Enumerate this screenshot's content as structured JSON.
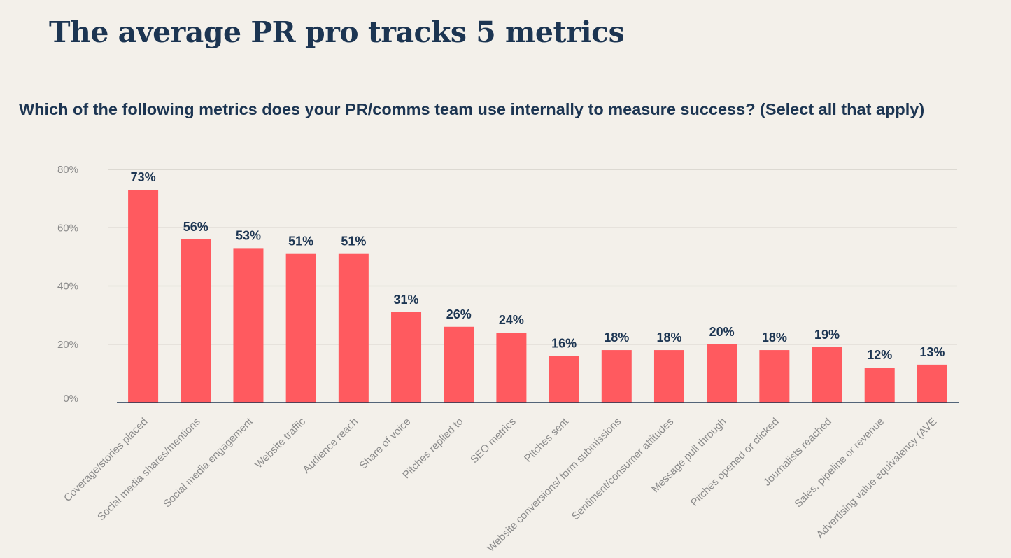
{
  "header": {
    "title": "The average PR pro tracks 5 metrics",
    "question": "Which of the following metrics does your PR/comms team use internally to measure success? (Select all that apply)"
  },
  "colors": {
    "bar": "#ff5a5f",
    "text": "#1c3552",
    "grid": "#cfcbc4",
    "axis": "#1c3552",
    "tick": "#8a8a8a",
    "background": "#f3f0ea"
  },
  "chart_data": {
    "type": "bar",
    "categories": [
      "Coverage/stories placed",
      "Social media shares/mentions",
      "Social media engagement",
      "Website traffic",
      "Audience reach",
      "Share of voice",
      "Pitches replied to",
      "SEO metrics",
      "Pitches sent",
      "Website conversions/ form submissions",
      "Sentiment/consumer attitudes",
      "Message pull through",
      "Pitches opened or clicked",
      "Journalists reached",
      "Sales, pipeline or revenue",
      "Advertising value equivalency (AVE"
    ],
    "values": [
      73,
      56,
      53,
      51,
      51,
      31,
      26,
      24,
      16,
      18,
      18,
      20,
      18,
      19,
      12,
      13
    ],
    "data_labels": [
      "73%",
      "56%",
      "53%",
      "51%",
      "51%",
      "31%",
      "26%",
      "24%",
      "16%",
      "18%",
      "18%",
      "20%",
      "18%",
      "19%",
      "12%",
      "13%"
    ],
    "y_ticks": [
      0,
      20,
      40,
      60,
      80
    ],
    "y_tick_labels": [
      "0%",
      "20%",
      "40%",
      "60%",
      "80%"
    ],
    "ylim": [
      0,
      80
    ],
    "title": "The average PR pro tracks 5 metrics",
    "subtitle": "Which of the following metrics does your PR/comms team use internally to measure success? (Select all that apply)",
    "grid": true,
    "legend": "none"
  }
}
